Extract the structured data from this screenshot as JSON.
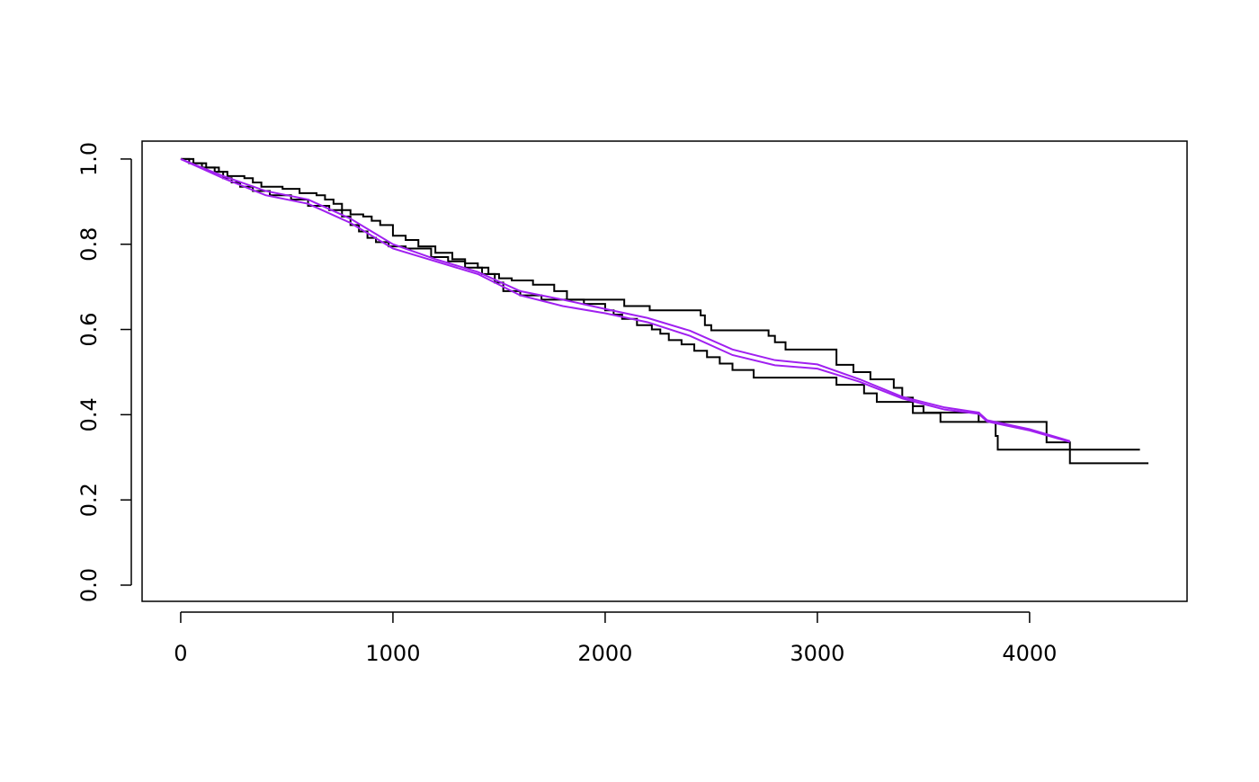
{
  "chart_data": {
    "type": "line",
    "xlim": [
      -182,
      4742
    ],
    "ylim": [
      -0.038,
      1.042
    ],
    "xticks": [
      0,
      1000,
      2000,
      3000,
      4000
    ],
    "yticks": [
      {
        "value": 0,
        "label": "0.0"
      },
      0.2,
      0.4,
      0.6,
      0.8,
      {
        "value": 1,
        "label": "1.0"
      }
    ],
    "series": [
      {
        "color": "#000000",
        "step": true,
        "x": [
          0,
          60,
          120,
          180,
          220,
          300,
          340,
          380,
          480,
          560,
          640,
          680,
          720,
          760,
          800,
          860,
          900,
          940,
          1000,
          1060,
          1120,
          1200,
          1280,
          1340,
          1400,
          1450,
          1500,
          1560,
          1660,
          1760,
          1820,
          2090,
          2210,
          2450,
          2470,
          2500,
          2770,
          2800,
          2850,
          3090,
          3170,
          3250,
          3360,
          3400,
          3450,
          3500,
          3760,
          3840,
          3850,
          4520
        ],
        "values": [
          1,
          0.99,
          0.98,
          0.97,
          0.96,
          0.955,
          0.945,
          0.935,
          0.93,
          0.92,
          0.915,
          0.905,
          0.895,
          0.88,
          0.87,
          0.865,
          0.855,
          0.845,
          0.82,
          0.81,
          0.795,
          0.78,
          0.765,
          0.755,
          0.745,
          0.73,
          0.72,
          0.715,
          0.705,
          0.69,
          0.67,
          0.655,
          0.645,
          0.633,
          0.61,
          0.598,
          0.585,
          0.57,
          0.553,
          0.517,
          0.5,
          0.483,
          0.463,
          0.44,
          0.42,
          0.405,
          0.383,
          0.35,
          0.318,
          0.318
        ]
      },
      {
        "color": "#000000",
        "step": true,
        "x": [
          0,
          40,
          100,
          160,
          200,
          240,
          280,
          340,
          420,
          520,
          600,
          700,
          760,
          800,
          840,
          880,
          920,
          980,
          1060,
          1180,
          1260,
          1340,
          1420,
          1480,
          1520,
          1600,
          1700,
          1900,
          2000,
          2040,
          2080,
          2150,
          2220,
          2260,
          2300,
          2360,
          2420,
          2480,
          2540,
          2600,
          2700,
          3090,
          3220,
          3280,
          3450,
          3580,
          4080,
          4190,
          4560
        ],
        "values": [
          1,
          0.99,
          0.98,
          0.97,
          0.955,
          0.945,
          0.935,
          0.925,
          0.915,
          0.905,
          0.89,
          0.88,
          0.865,
          0.845,
          0.83,
          0.815,
          0.805,
          0.795,
          0.79,
          0.77,
          0.76,
          0.745,
          0.73,
          0.71,
          0.69,
          0.68,
          0.67,
          0.66,
          0.645,
          0.635,
          0.625,
          0.61,
          0.6,
          0.59,
          0.575,
          0.565,
          0.55,
          0.535,
          0.52,
          0.505,
          0.487,
          0.47,
          0.45,
          0.43,
          0.404,
          0.383,
          0.335,
          0.286,
          0.286
        ]
      },
      {
        "color": "#a020f0",
        "step": false,
        "x": [
          0,
          200,
          400,
          600,
          800,
          1000,
          1200,
          1400,
          1600,
          1800,
          2000,
          2200,
          2400,
          2600,
          2800,
          3000,
          3200,
          3400,
          3600,
          3760,
          3800,
          4000,
          4190
        ],
        "values": [
          1,
          0.96,
          0.925,
          0.905,
          0.86,
          0.8,
          0.765,
          0.735,
          0.69,
          0.67,
          0.648,
          0.627,
          0.597,
          0.553,
          0.528,
          0.518,
          0.483,
          0.442,
          0.417,
          0.405,
          0.387,
          0.366,
          0.338
        ]
      },
      {
        "color": "#a020f0",
        "step": false,
        "x": [
          0,
          200,
          400,
          600,
          800,
          1000,
          1200,
          1400,
          1600,
          1800,
          2000,
          2200,
          2400,
          2600,
          2800,
          3000,
          3200,
          3400,
          3600,
          3760,
          3800,
          4000,
          4190
        ],
        "values": [
          1,
          0.955,
          0.915,
          0.895,
          0.85,
          0.79,
          0.76,
          0.73,
          0.68,
          0.655,
          0.638,
          0.617,
          0.585,
          0.54,
          0.516,
          0.508,
          0.477,
          0.438,
          0.412,
          0.402,
          0.384,
          0.363,
          0.336
        ]
      }
    ]
  }
}
